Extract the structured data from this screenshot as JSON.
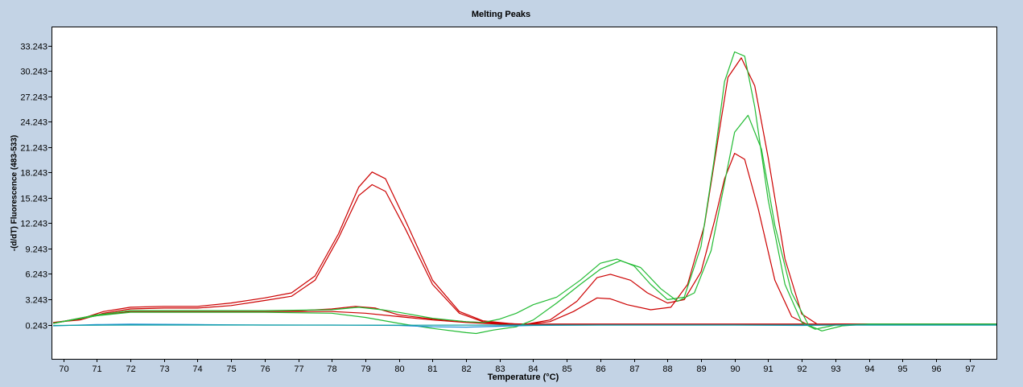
{
  "chart_data": {
    "type": "line",
    "title": "Melting Peaks",
    "xlabel": "Temperature (°C)",
    "ylabel": "-(d/dT) Fluorescence (483-533)",
    "xlim": [
      69.65,
      97.8
    ],
    "ylim": [
      -3.8,
      35.5
    ],
    "x_ticks": [
      70,
      71,
      72,
      73,
      74,
      75,
      76,
      77,
      78,
      79,
      80,
      81,
      82,
      83,
      84,
      85,
      86,
      87,
      88,
      89,
      90,
      91,
      92,
      93,
      94,
      95,
      96,
      97
    ],
    "x_tick_labels": [
      "70",
      "71",
      "72",
      "73",
      "74",
      "75",
      "76",
      "77",
      "78",
      "79",
      "80",
      "81",
      "82",
      "83",
      "84",
      "85",
      "86",
      "87",
      "88",
      "89",
      "90",
      "91",
      "92",
      "93",
      "94",
      "95",
      "96",
      "97"
    ],
    "y_ticks": [
      0.243,
      3.243,
      6.243,
      9.243,
      12.243,
      15.243,
      18.243,
      21.243,
      24.243,
      27.243,
      30.243,
      33.243
    ],
    "y_tick_labels": [
      "0.243",
      "3.243",
      "6.243",
      "9.243",
      "12.243",
      "15.243",
      "18.243",
      "21.243",
      "24.243",
      "27.243",
      "30.243",
      "33.243"
    ],
    "grid": false,
    "legend": "none",
    "series": [
      {
        "color": "#cc0000",
        "x": [
          69.7,
          70.5,
          71.2,
          72,
          73,
          74,
          75,
          76,
          76.8,
          77.5,
          78.2,
          78.8,
          79.2,
          79.6,
          80.2,
          81,
          81.8,
          82.5,
          83.5,
          84.5,
          86,
          88,
          90,
          92,
          94,
          97.8
        ],
        "y": [
          0.5,
          0.9,
          1.8,
          2.3,
          2.4,
          2.4,
          2.8,
          3.4,
          4.0,
          6.0,
          11.0,
          16.5,
          18.3,
          17.5,
          12.5,
          5.5,
          1.8,
          0.7,
          0.3,
          0.3,
          0.3,
          0.3,
          0.3,
          0.3,
          0.3,
          0.3
        ]
      },
      {
        "color": "#cc0000",
        "x": [
          69.7,
          70.5,
          71.2,
          72,
          73,
          74,
          75,
          76,
          76.8,
          77.5,
          78.2,
          78.8,
          79.2,
          79.6,
          80.2,
          81,
          81.8,
          82.5,
          83.5,
          84.5,
          86,
          88,
          90,
          92,
          94,
          97.8
        ],
        "y": [
          0.5,
          0.8,
          1.6,
          2.1,
          2.2,
          2.2,
          2.5,
          3.1,
          3.6,
          5.5,
          10.5,
          15.5,
          16.8,
          16.0,
          11.5,
          5.0,
          1.6,
          0.6,
          0.3,
          0.3,
          0.3,
          0.3,
          0.3,
          0.3,
          0.3,
          0.3
        ]
      },
      {
        "color": "#cc0000",
        "x": [
          69.7,
          71,
          72,
          74,
          76,
          77,
          78,
          78.7,
          79.3,
          80,
          81,
          82,
          83,
          83.8,
          84.5,
          85.2,
          85.9,
          86.3,
          86.8,
          87.5,
          88.1,
          88.6,
          89.1,
          89.5,
          89.8,
          90.2,
          90.6,
          91,
          91.5,
          92,
          92.5,
          93,
          94,
          97.8
        ],
        "y": [
          0.4,
          1.4,
          1.9,
          1.9,
          1.9,
          1.9,
          2.1,
          2.4,
          2.2,
          1.4,
          0.9,
          0.6,
          0.4,
          0.3,
          0.6,
          1.8,
          3.4,
          3.3,
          2.6,
          2.0,
          2.3,
          5.0,
          12.0,
          22.0,
          29.5,
          31.8,
          28.5,
          20.0,
          8.0,
          1.5,
          0.2,
          0.3,
          0.3,
          0.3
        ]
      },
      {
        "color": "#cc0000",
        "x": [
          69.7,
          71,
          72,
          74,
          76,
          78,
          79,
          80,
          81,
          82,
          83,
          83.8,
          84.5,
          85.3,
          85.9,
          86.3,
          86.9,
          87.4,
          88,
          88.5,
          89,
          89.4,
          89.7,
          90,
          90.3,
          90.7,
          91.2,
          91.7,
          92.2,
          93,
          94,
          97.8
        ],
        "y": [
          0.4,
          1.3,
          1.8,
          1.8,
          1.8,
          1.8,
          1.6,
          1.2,
          0.8,
          0.5,
          0.3,
          0.3,
          0.8,
          3.0,
          5.8,
          6.2,
          5.5,
          4.0,
          2.8,
          3.2,
          6.5,
          12.5,
          17.5,
          20.5,
          19.8,
          14.0,
          5.5,
          1.2,
          0.2,
          0.3,
          0.3,
          0.3
        ]
      },
      {
        "color": "#22bb33",
        "x": [
          69.7,
          71,
          72,
          74,
          76,
          78,
          78.8,
          79.5,
          80,
          81,
          82,
          82.5,
          83,
          83.5,
          84,
          84.7,
          85.4,
          86,
          86.5,
          87,
          87.5,
          88,
          88.5,
          89,
          89.4,
          89.7,
          90,
          90.3,
          90.6,
          91,
          91.5,
          92,
          92.4,
          93,
          94,
          97.8
        ],
        "y": [
          0.4,
          1.4,
          1.9,
          1.9,
          1.9,
          2.0,
          2.3,
          2.0,
          1.7,
          1.0,
          0.6,
          0.5,
          0.9,
          1.6,
          2.6,
          3.5,
          5.5,
          7.5,
          8.0,
          7.2,
          5.0,
          3.2,
          3.5,
          9.5,
          20.0,
          29.0,
          32.5,
          32.0,
          26.0,
          15.0,
          5.0,
          0.5,
          -0.3,
          0.2,
          0.3,
          0.3
        ]
      },
      {
        "color": "#22bb33",
        "x": [
          69.7,
          71,
          72,
          74,
          76,
          78,
          79,
          80,
          81,
          82,
          82.3,
          82.8,
          83.5,
          84,
          84.7,
          85.4,
          86,
          86.6,
          87.2,
          87.8,
          88.3,
          88.8,
          89.3,
          89.7,
          90,
          90.4,
          90.8,
          91.2,
          91.7,
          92.2,
          92.6,
          93.2,
          94,
          97.8
        ],
        "y": [
          0.4,
          1.3,
          1.7,
          1.7,
          1.7,
          1.6,
          1.1,
          0.4,
          -0.2,
          -0.7,
          -0.8,
          -0.4,
          0.0,
          0.8,
          2.8,
          5.0,
          6.8,
          7.8,
          7.0,
          4.5,
          3.0,
          4.0,
          9.0,
          17.0,
          23.0,
          25.0,
          21.0,
          12.0,
          4.0,
          0.2,
          -0.5,
          0.1,
          0.3,
          0.3
        ]
      },
      {
        "color": "#1f8fd6",
        "x": [
          69.7,
          71,
          72,
          74,
          76,
          78,
          80,
          81,
          82,
          83,
          84,
          86,
          90,
          92,
          93,
          94,
          97.8
        ],
        "y": [
          0.1,
          0.25,
          0.3,
          0.25,
          0.2,
          0.2,
          0.15,
          0.0,
          -0.05,
          0.05,
          0.15,
          0.2,
          0.2,
          0.15,
          0.2,
          0.2,
          0.2
        ]
      },
      {
        "color": "#0fa0a0",
        "x": [
          69.7,
          72,
          76,
          80,
          84,
          88,
          92,
          94,
          97.8
        ],
        "y": [
          0.15,
          0.2,
          0.2,
          0.18,
          0.2,
          0.2,
          0.2,
          0.2,
          0.2
        ]
      }
    ]
  }
}
